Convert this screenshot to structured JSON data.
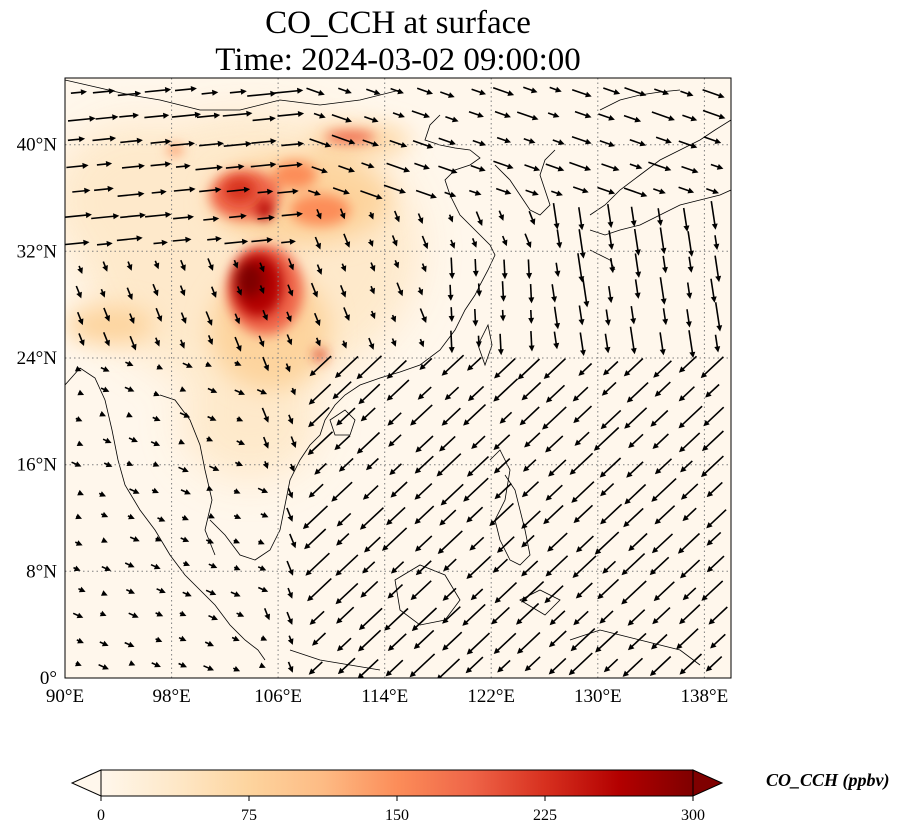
{
  "title": {
    "line1": "CO_CCH at surface",
    "line2": "Time: 2024-03-02 09:00:00"
  },
  "map": {
    "projection": "PlateCarree",
    "lon_range": [
      90,
      140
    ],
    "lat_range": [
      0,
      45
    ],
    "x_ticks": [
      {
        "value": 90,
        "label": "90°E"
      },
      {
        "value": 98,
        "label": "98°E"
      },
      {
        "value": 106,
        "label": "106°E"
      },
      {
        "value": 114,
        "label": "114°E"
      },
      {
        "value": 122,
        "label": "122°E"
      },
      {
        "value": 130,
        "label": "130°E"
      },
      {
        "value": 138,
        "label": "138°E"
      }
    ],
    "y_ticks": [
      {
        "value": 0,
        "label": "0°"
      },
      {
        "value": 8,
        "label": "8°N"
      },
      {
        "value": 16,
        "label": "16°N"
      },
      {
        "value": 24,
        "label": "24°N"
      },
      {
        "value": 32,
        "label": "32°N"
      },
      {
        "value": 40,
        "label": "40°N"
      }
    ],
    "gridlines": true,
    "gridline_style": "dotted",
    "field": "CO_CCH",
    "high_concentration_regions": [
      {
        "lon": 104.5,
        "lat": 28.5,
        "value": 300
      },
      {
        "lon": 103.5,
        "lat": 36.5,
        "value": 230
      },
      {
        "lon": 108.5,
        "lat": 34.5,
        "value": 180
      },
      {
        "lon": 111,
        "lat": 40.5,
        "value": 160
      },
      {
        "lon": 93,
        "lat": 26.5,
        "value": 70
      },
      {
        "lon": 110.5,
        "lat": 24.5,
        "value": 170
      }
    ],
    "wind_vectors": "quiver"
  },
  "colorbar": {
    "label": "CO_CCH (ppbv)",
    "min": 0,
    "max": 300,
    "extend": "both",
    "colormap": "OrRd",
    "ticks": [
      {
        "value": 0,
        "label": "0"
      },
      {
        "value": 75,
        "label": "75"
      },
      {
        "value": 150,
        "label": "150"
      },
      {
        "value": 225,
        "label": "225"
      },
      {
        "value": 300,
        "label": "300"
      }
    ]
  }
}
